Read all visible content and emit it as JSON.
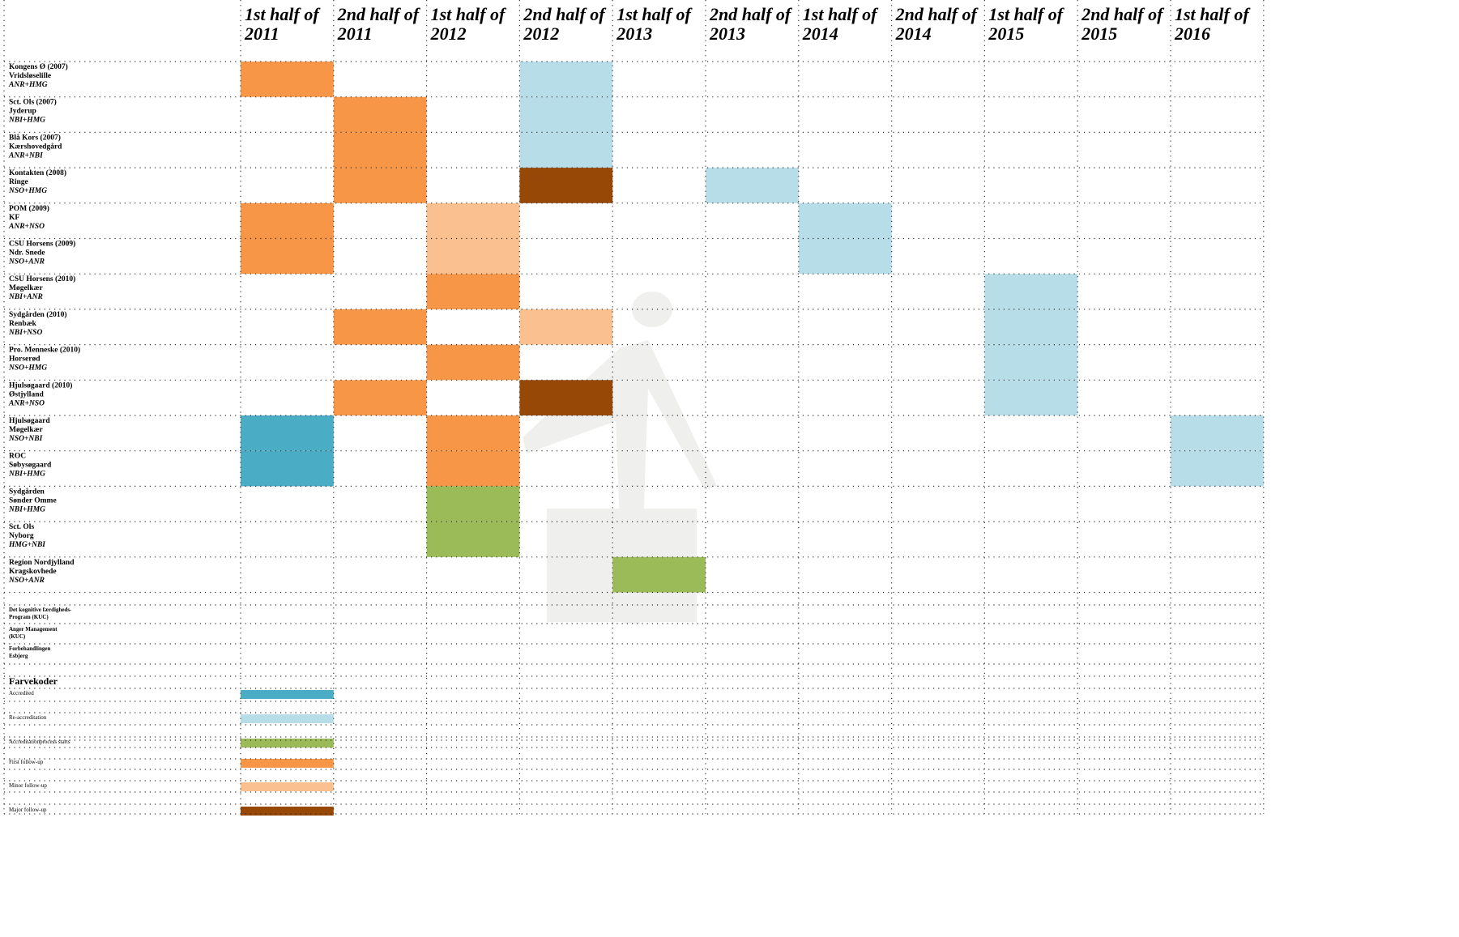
{
  "columns": [
    [
      "1st half of",
      "2011"
    ],
    [
      "2nd half of",
      "2011"
    ],
    [
      "1st half of",
      "2012"
    ],
    [
      "2nd half of",
      "2012"
    ],
    [
      "1st half of",
      "2013"
    ],
    [
      "2nd half of",
      "2013"
    ],
    [
      "1st half of",
      "2014"
    ],
    [
      "2nd half of",
      "2014"
    ],
    [
      "1st half of",
      "2015"
    ],
    [
      "2nd half of",
      "2015"
    ],
    [
      "1st half of",
      "2016"
    ]
  ],
  "rows": [
    {
      "label": [
        "Kongens Ø (2007)",
        "Vridsløselille",
        "ANR+HMG"
      ],
      "cells": [
        "#f79646",
        null,
        null,
        "#b7dde8",
        null,
        null,
        null,
        null,
        null,
        null,
        null
      ]
    },
    {
      "label": [
        "Sct. Ols (2007)",
        "Jyderup",
        " NBI+HMG"
      ],
      "cells": [
        null,
        "#f79646",
        null,
        "#b7dde8",
        null,
        null,
        null,
        null,
        null,
        null,
        null
      ]
    },
    {
      "label": [
        "Blå Kors (2007)",
        "Kærshovedgård",
        "ANR+NBI"
      ],
      "cells": [
        null,
        "#f79646",
        null,
        "#b7dde8",
        null,
        null,
        null,
        null,
        null,
        null,
        null
      ]
    },
    {
      "label": [
        "Kontakten (2008)",
        "Ringe",
        "NSO+HMG"
      ],
      "cells": [
        null,
        "#f79646",
        null,
        "#974706",
        null,
        "#b7dde8",
        null,
        null,
        null,
        null,
        null
      ]
    },
    {
      "label": [
        "POM (2009)",
        "KF",
        "ANR+NSO"
      ],
      "cells": [
        "#f79646",
        null,
        "#fac090",
        null,
        null,
        null,
        "#b7dde8",
        null,
        null,
        null,
        null
      ]
    },
    {
      "label": [
        "CSU Horsens (2009)",
        "Ndr. Snede",
        "NSO+ANR"
      ],
      "cells": [
        "#f79646",
        null,
        "#fac090",
        null,
        null,
        null,
        "#b7dde8",
        null,
        null,
        null,
        null
      ]
    },
    {
      "label": [
        "CSU Horsens (2010)",
        "Møgelkær",
        "NBI+ANR"
      ],
      "cells": [
        null,
        null,
        "#f79646",
        null,
        null,
        null,
        null,
        null,
        "#b7dde8",
        null,
        null
      ]
    },
    {
      "label": [
        "Sydgården (2010)",
        "Renbæk",
        "NBI+NSO"
      ],
      "cells": [
        null,
        "#f79646",
        null,
        "#fac090",
        null,
        null,
        null,
        null,
        "#b7dde8",
        null,
        null
      ]
    },
    {
      "label": [
        "Pro. Menneske (2010)",
        "Horserød",
        "NSO+HMG"
      ],
      "cells": [
        null,
        null,
        "#f79646",
        null,
        null,
        null,
        null,
        null,
        "#b7dde8",
        null,
        null
      ]
    },
    {
      "label": [
        "Hjulsøgaard (2010)",
        "Østjylland",
        "ANR+NSO"
      ],
      "cells": [
        null,
        "#f79646",
        null,
        "#974706",
        null,
        null,
        null,
        null,
        "#b7dde8",
        null,
        null
      ]
    },
    {
      "label": [
        "Hjulsøgaard",
        "Møgelkær",
        "NSO+NBI"
      ],
      "cells": [
        "#4bacc6",
        null,
        "#f79646",
        null,
        null,
        null,
        null,
        null,
        null,
        null,
        "#b7dde8"
      ]
    },
    {
      "label": [
        "ROC",
        "Søbysøgaard",
        "NBI+HMG"
      ],
      "cells": [
        "#4bacc6",
        null,
        "#f79646",
        null,
        null,
        null,
        null,
        null,
        null,
        null,
        "#b7dde8"
      ]
    },
    {
      "label": [
        "Sydgården",
        "Sønder Omme",
        "NBI+HMG"
      ],
      "cells": [
        null,
        null,
        "#9bbb59",
        null,
        null,
        null,
        null,
        null,
        null,
        null,
        null
      ]
    },
    {
      "label": [
        "Sct. Ols",
        "Nyborg",
        "HMG+NBI"
      ],
      "cells": [
        null,
        null,
        "#9bbb59",
        null,
        null,
        null,
        null,
        null,
        null,
        null,
        null
      ]
    },
    {
      "label": [
        "Region Nordjylland",
        "Kragskovhede",
        "NSO+ANR"
      ],
      "cells": [
        null,
        null,
        null,
        null,
        "#9bbb59",
        null,
        null,
        null,
        null,
        null,
        null
      ]
    }
  ],
  "programs": [
    [
      "Det kognitive færdigheds-",
      "Program (KUC)"
    ],
    [
      "Anger Management",
      "(KUC)"
    ],
    [
      "Forbehandlingen",
      "Esbjerg"
    ]
  ],
  "legend_title": "Farvekoder",
  "legend": [
    {
      "label": "Accredited",
      "color": "#4bacc6"
    },
    {
      "label": "Re-accreditation",
      "color": "#b7dde8"
    },
    {
      "label": "Accreditationprocess starts",
      "color": "#9bbb59"
    },
    {
      "label": "First follow-up",
      "color": "#f79646"
    },
    {
      "label": "Minor follow-up",
      "color": "#fac090"
    },
    {
      "label": "Major follow-up",
      "color": "#974706"
    }
  ]
}
